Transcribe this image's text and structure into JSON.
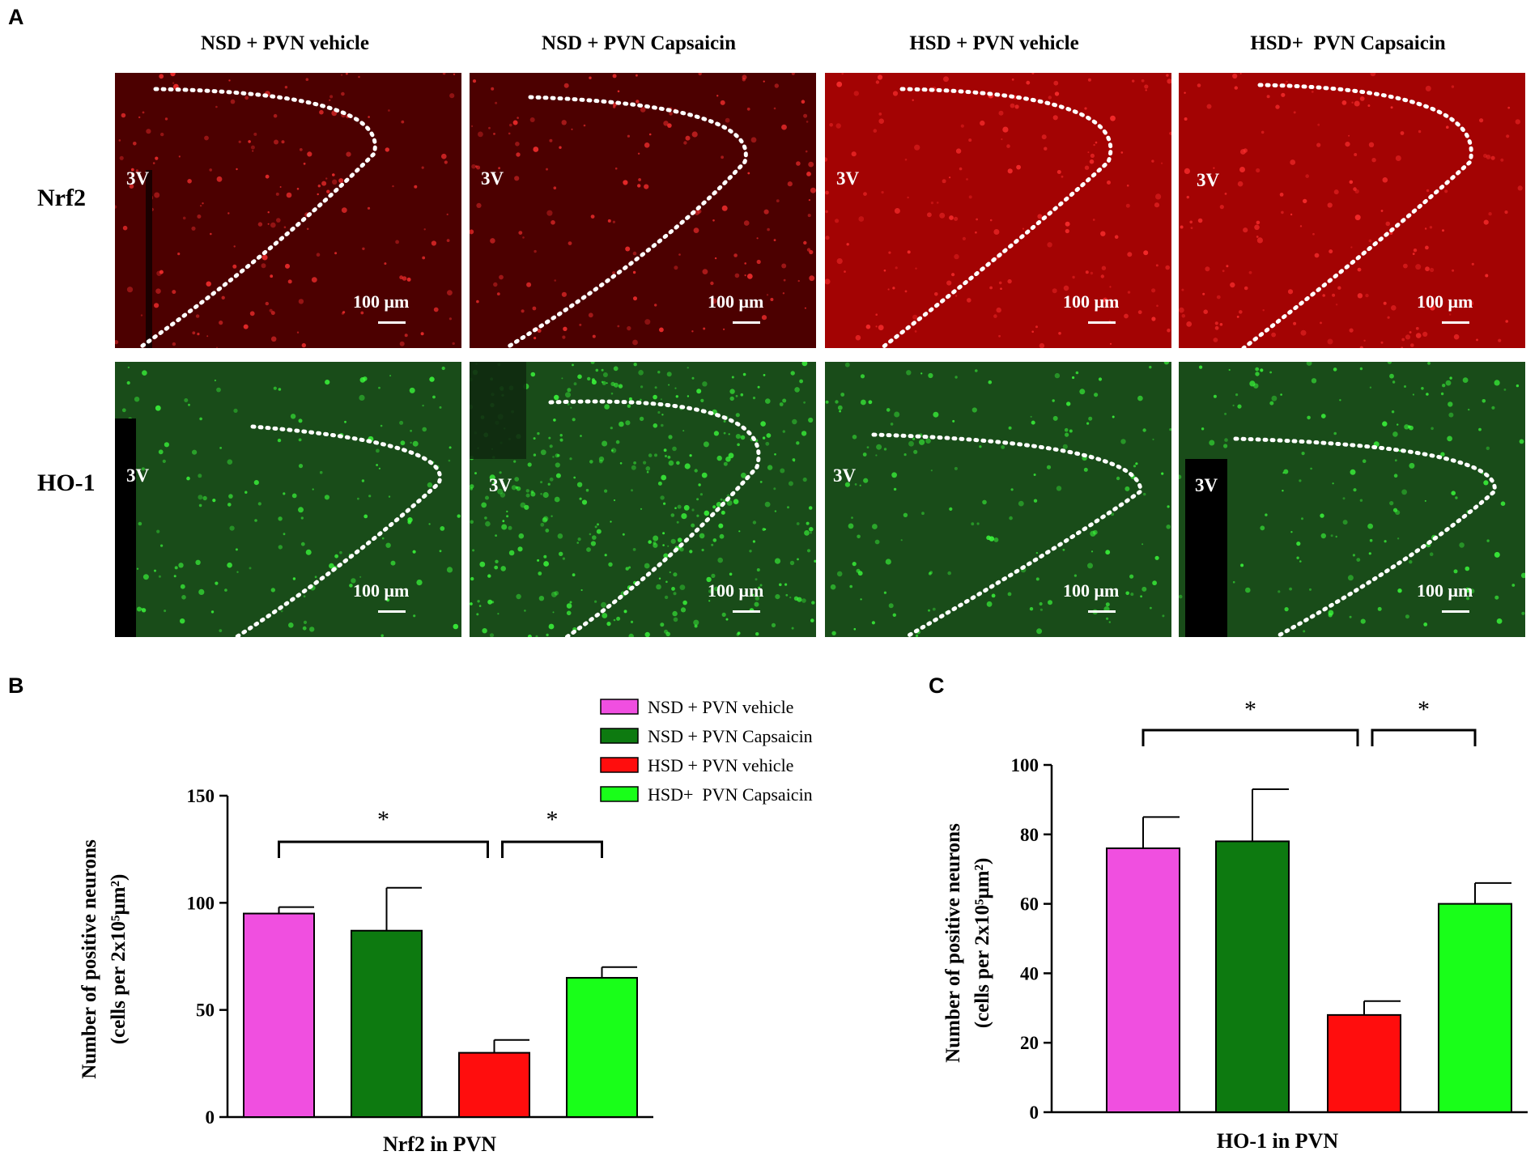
{
  "figure": {
    "panel_labels": [
      "A",
      "B",
      "C"
    ],
    "columns": [
      "NSD + PVN vehicle",
      "NSD + PVN Capsaicin",
      "HSD + PVN vehicle",
      "HSD+  PVN Capsaicin"
    ],
    "rows": [
      "Nrf2",
      "HO-1"
    ],
    "ventricle_label": "3V",
    "scale_bar_label": "100 μm",
    "colors": {
      "nsd_vehicle": "#f04fe0",
      "nsd_capsaicin": "#0d7a10",
      "hsd_vehicle": "#ff0d0d",
      "hsd_capsaicin": "#19ff19",
      "stain_red": "#b40000",
      "stain_green": "#1f6a1f"
    }
  },
  "chart_data": [
    {
      "type": "bar",
      "title": "",
      "xlabel": "Nrf2 in PVN",
      "ylabel_line1": "Number of positive neurons",
      "ylabel_line2": "(cells per 2x10⁵μm²)",
      "categories": [
        "NSD + PVN vehicle",
        "NSD + PVN Capsaicin",
        "HSD + PVN vehicle",
        "HSD+  PVN Capsaicin"
      ],
      "values": [
        95,
        87,
        30,
        65
      ],
      "errors": [
        3,
        20,
        6,
        5
      ],
      "ylim": [
        0,
        150
      ],
      "yticks": [
        "0",
        "50",
        "100",
        "150"
      ],
      "significance": [
        {
          "from": 0,
          "to": 2,
          "label": "*"
        },
        {
          "from": 2,
          "to": 3,
          "label": "*"
        }
      ],
      "legend": [
        "NSD + PVN vehicle",
        "NSD + PVN Capsaicin",
        "HSD + PVN vehicle",
        "HSD+  PVN Capsaicin"
      ],
      "legend_position": "top-right"
    },
    {
      "type": "bar",
      "title": "",
      "xlabel": "HO-1 in PVN",
      "ylabel_line1": "Number of positive neurons",
      "ylabel_line2": "(cells per 2x10⁵μm²)",
      "categories": [
        "NSD + PVN vehicle",
        "NSD + PVN Capsaicin",
        "HSD + PVN vehicle",
        "HSD+  PVN Capsaicin"
      ],
      "values": [
        76,
        78,
        28,
        60
      ],
      "errors": [
        9,
        15,
        4,
        6
      ],
      "ylim": [
        0,
        100
      ],
      "yticks": [
        "0",
        "20",
        "40",
        "60",
        "80",
        "100"
      ],
      "significance": [
        {
          "from": 0,
          "to": 2,
          "label": "*"
        },
        {
          "from": 2,
          "to": 3,
          "label": "*"
        }
      ]
    }
  ]
}
